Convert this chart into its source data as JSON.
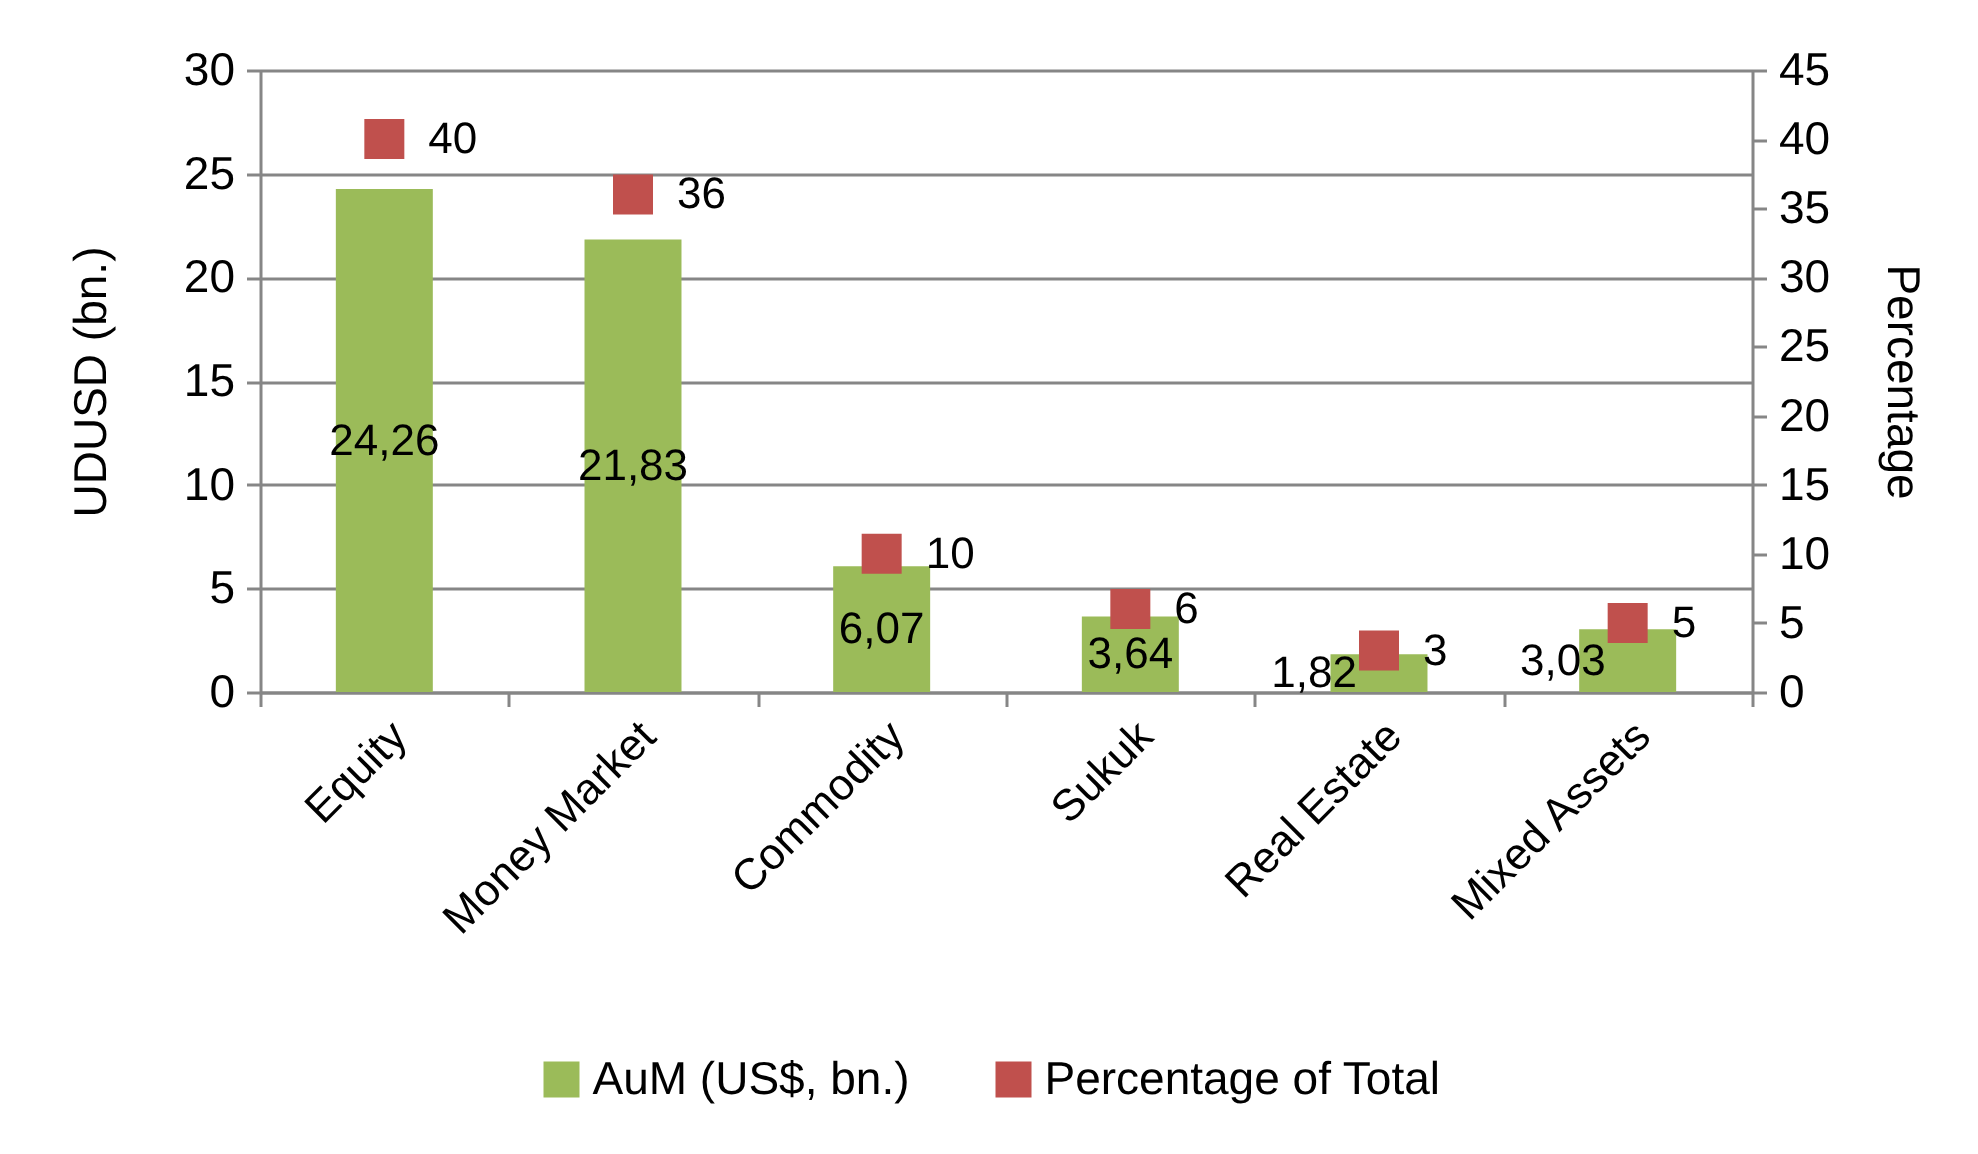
{
  "chart_data": {
    "type": "bar",
    "categories": [
      "Equity",
      "Money Market",
      "Commodity",
      "Sukuk",
      "Real Estate",
      "Mixed Assets"
    ],
    "series": [
      {
        "name": "AuM (US$, bn.)",
        "type": "bar",
        "color": "#9bbb59",
        "values": [
          24.26,
          21.83,
          6.07,
          3.64,
          1.82,
          3.03
        ],
        "value_labels": [
          "24,26",
          "21,83",
          "6,07",
          "3,64",
          "1,82",
          "3,03"
        ]
      },
      {
        "name": "Percentage of Total",
        "type": "scatter",
        "axis": "y2",
        "marker": "square",
        "color": "#c0504d",
        "values": [
          40,
          36,
          10,
          6,
          3,
          5
        ],
        "value_labels": [
          "40",
          "36",
          "10",
          "6",
          "3",
          "5"
        ]
      }
    ],
    "ylabel": "UDUSD (bn.)",
    "y2label": "Percentage",
    "ylim": [
      0,
      30
    ],
    "yticks": [
      0,
      5,
      10,
      15,
      20,
      25,
      30
    ],
    "y2lim": [
      0,
      45
    ],
    "y2ticks": [
      0,
      5,
      10,
      15,
      20,
      25,
      30,
      35,
      40,
      45
    ],
    "grid": "y",
    "legend": "bottom"
  }
}
